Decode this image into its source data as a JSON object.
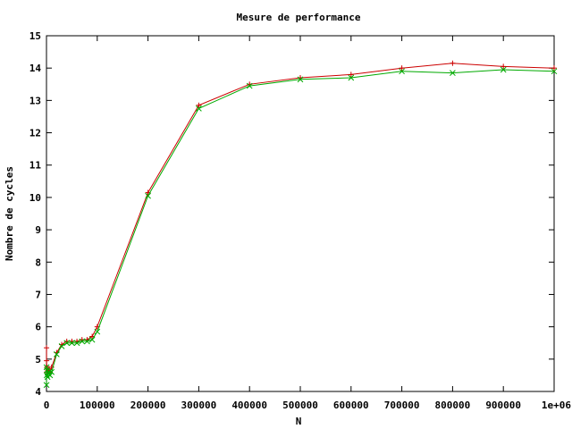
{
  "chart_data": {
    "type": "line",
    "title": "Mesure de performance",
    "xlabel": "N",
    "ylabel": "Nombre de cycles",
    "xlim": [
      0,
      1000000
    ],
    "ylim": [
      4,
      15
    ],
    "xticks": [
      0,
      100000,
      200000,
      300000,
      400000,
      500000,
      600000,
      700000,
      800000,
      900000,
      1000000
    ],
    "xtick_labels": [
      "0",
      "100000",
      "200000",
      "300000",
      "400000",
      "500000",
      "600000",
      "700000",
      "800000",
      "900000",
      "1e+06"
    ],
    "yticks": [
      4,
      5,
      6,
      7,
      8,
      9,
      10,
      11,
      12,
      13,
      14,
      15
    ],
    "ytick_labels": [
      "4",
      "5",
      "6",
      "7",
      "8",
      "9",
      "10",
      "11",
      "12",
      "13",
      "14",
      "15"
    ],
    "grid": false,
    "legend": "none",
    "series": [
      {
        "color": "#cc0000",
        "marker": "plus",
        "x": [
          100,
          200,
          500,
          1000,
          2000,
          3000,
          5000,
          7000,
          10000,
          20000,
          30000,
          40000,
          50000,
          60000,
          70000,
          80000,
          90000,
          100000,
          200000,
          300000,
          400000,
          500000,
          600000,
          700000,
          800000,
          900000,
          1000000
        ],
        "y": [
          5.35,
          4.95,
          4.6,
          4.75,
          4.55,
          4.65,
          4.7,
          4.6,
          4.75,
          5.2,
          5.45,
          5.55,
          5.55,
          5.55,
          5.6,
          5.6,
          5.7,
          6.0,
          10.15,
          12.85,
          13.5,
          13.7,
          13.8,
          14.0,
          14.15,
          14.05,
          14.0
        ]
      },
      {
        "color": "#00aa00",
        "marker": "cross",
        "x": [
          100,
          200,
          500,
          1000,
          2000,
          3000,
          5000,
          7000,
          10000,
          20000,
          30000,
          40000,
          50000,
          60000,
          70000,
          80000,
          90000,
          100000,
          200000,
          300000,
          400000,
          500000,
          600000,
          700000,
          800000,
          900000,
          1000000
        ],
        "y": [
          4.2,
          4.75,
          4.5,
          4.65,
          4.45,
          4.55,
          4.6,
          4.5,
          4.6,
          5.15,
          5.4,
          5.5,
          5.5,
          5.5,
          5.55,
          5.55,
          5.6,
          5.85,
          10.05,
          12.75,
          13.45,
          13.65,
          13.7,
          13.9,
          13.85,
          13.95,
          13.9
        ]
      }
    ]
  }
}
